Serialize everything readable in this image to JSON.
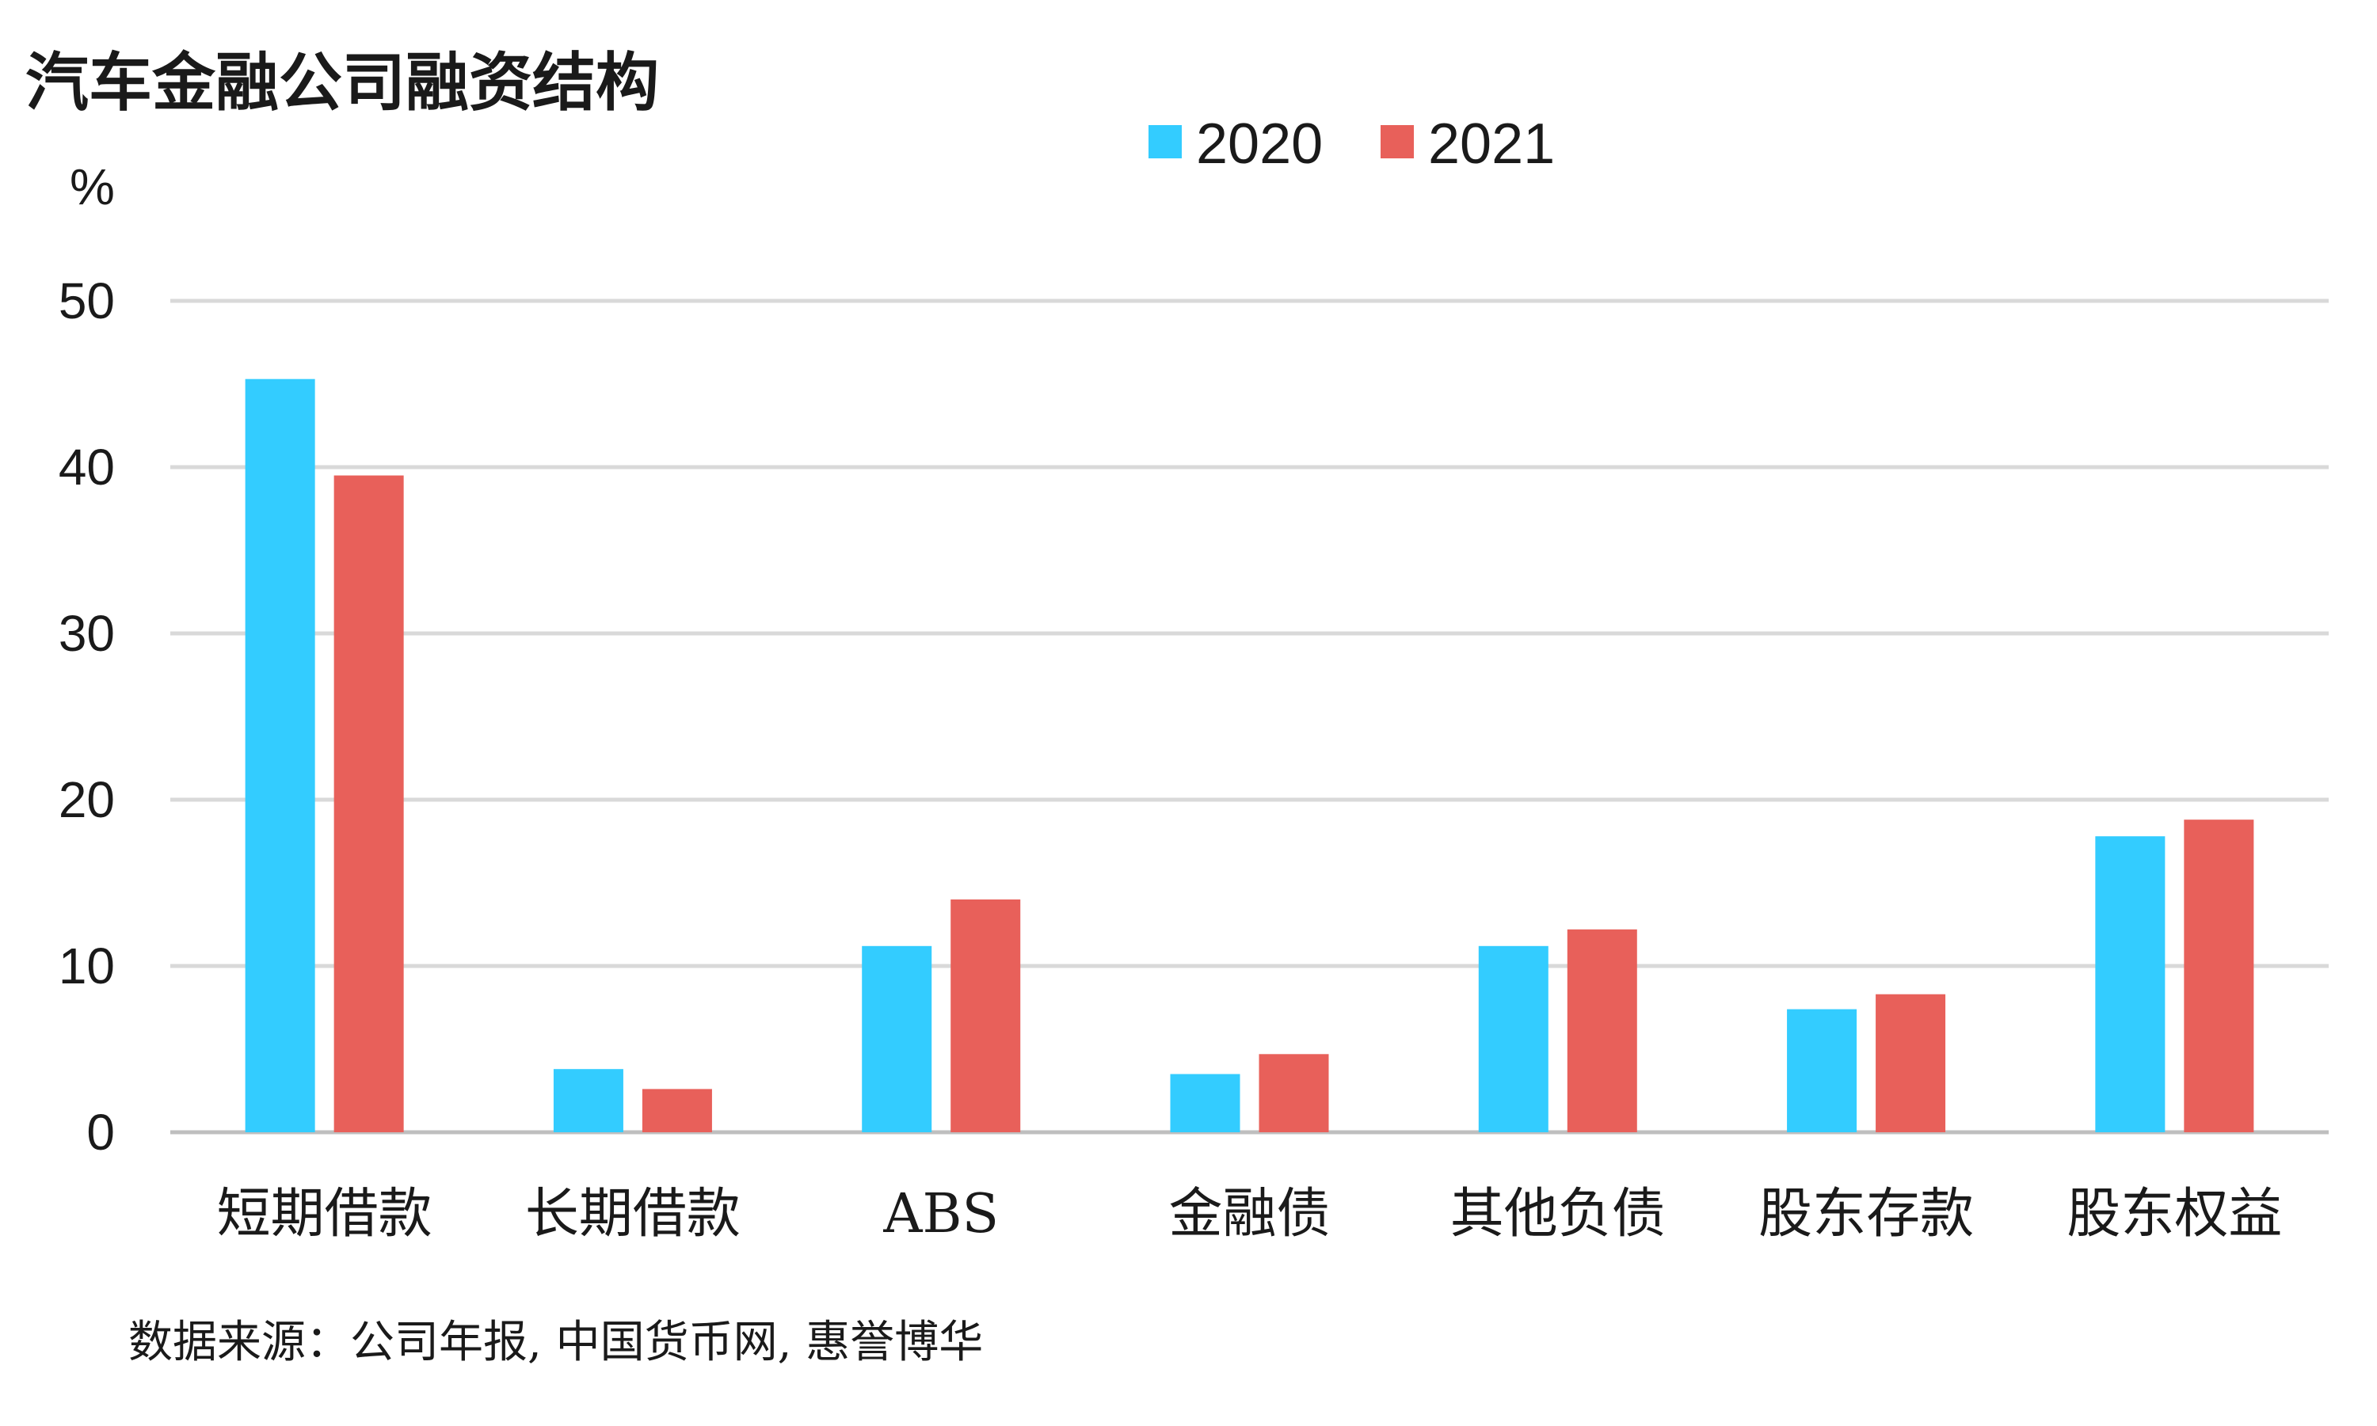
{
  "chart_data": {
    "type": "bar",
    "title": "汽车金融公司融资结构",
    "ylabel": "%",
    "source": "数据来源：公司年报, 中国货币网, 惠誉博华",
    "categories": [
      "短期借款",
      "长期借款",
      "ABS",
      "金融债",
      "其他负债",
      "股东存款",
      "股东权益"
    ],
    "series": [
      {
        "name": "2020",
        "color": "#33ccff",
        "values": [
          45.3,
          3.8,
          11.2,
          3.5,
          11.2,
          7.4,
          17.8
        ]
      },
      {
        "name": "2021",
        "color": "#e8605a",
        "values": [
          39.5,
          2.6,
          14.0,
          4.7,
          12.2,
          8.3,
          18.8
        ]
      }
    ],
    "ylim": [
      0,
      50
    ],
    "yticks": [
      "0",
      "10",
      "20",
      "30",
      "40",
      "50"
    ],
    "grid": true,
    "legend_position": "top-center"
  }
}
